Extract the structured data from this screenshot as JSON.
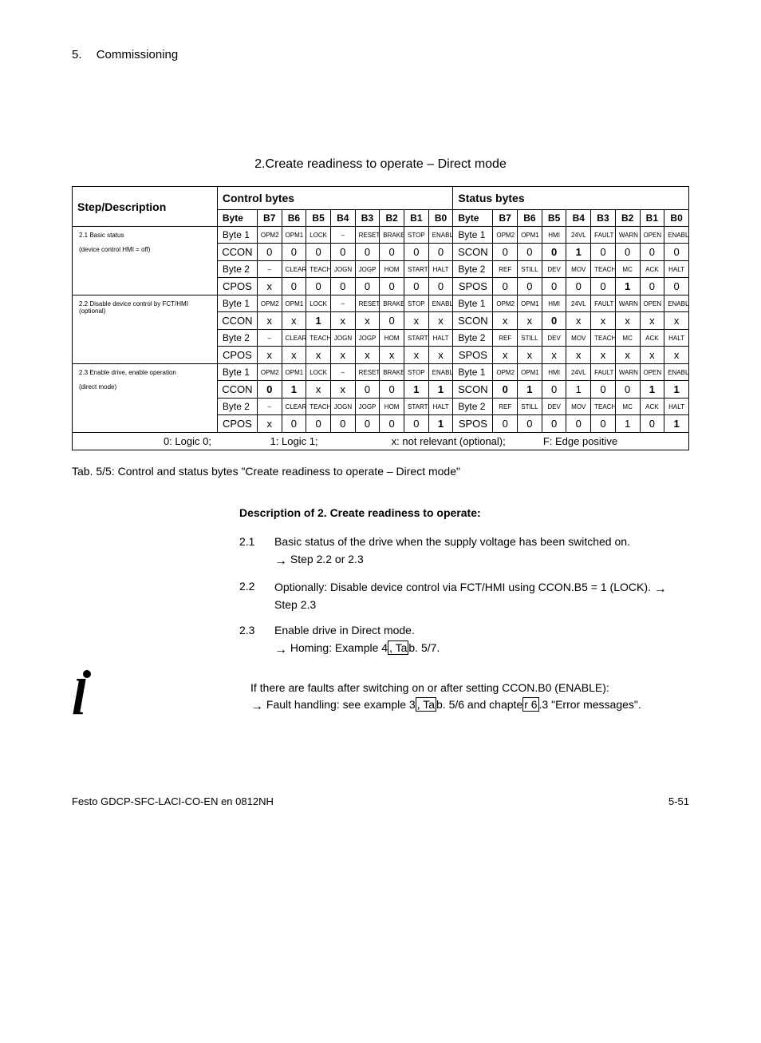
{
  "chapter": {
    "num": "5.",
    "title": "Commissioning"
  },
  "section_title": "2.Create readiness to operate – Direct mode",
  "header": {
    "step": "Step/Description",
    "control": "Control bytes",
    "status": "Status bytes",
    "byte": "Byte",
    "bits": [
      "B7",
      "B6",
      "B5",
      "B4",
      "B3",
      "B2",
      "B1",
      "B0"
    ]
  },
  "label_bits": {
    "byte1_c": [
      "OPM2",
      "OPM1",
      "LOCK",
      "–",
      "RESET",
      "BRAKE",
      "STOP",
      "ENABL"
    ],
    "byte1_s": [
      "OPM2",
      "OPM1",
      "HMI",
      "24VL",
      "FAULT",
      "WARN",
      "OPEN",
      "ENABL"
    ],
    "byte2_c": [
      "–",
      "CLEAR",
      "TEACH",
      "JOGN",
      "JOGP",
      "HOM",
      "START",
      "HALT"
    ],
    "byte2_s": [
      "REF",
      "STILL",
      "DEV",
      "MOV",
      "TEACH",
      "MC",
      "ACK",
      "HALT"
    ]
  },
  "rows": [
    {
      "desc": "2.1 Basic status\n\n(device control HMI = off)",
      "b1c_label": "Byte 1",
      "b1c_reg": "CCON",
      "b1c_vals": [
        "0",
        "0",
        "0",
        "0",
        "0",
        "0",
        "0",
        "0"
      ],
      "b1s_label": "Byte 1",
      "b1s_reg": "SCON",
      "b1s_vals": [
        "0",
        "0",
        "0",
        "1",
        "0",
        "0",
        "0",
        "0"
      ],
      "b1s_bold": [
        false,
        false,
        true,
        true,
        false,
        false,
        false,
        false
      ],
      "b2c_label": "Byte 2",
      "b2c_reg": "CPOS",
      "b2c_vals": [
        "x",
        "0",
        "0",
        "0",
        "0",
        "0",
        "0",
        "0"
      ],
      "b2s_label": "Byte 2",
      "b2s_reg": "SPOS",
      "b2s_vals": [
        "0",
        "0",
        "0",
        "0",
        "0",
        "1",
        "0",
        "0"
      ],
      "b2s_bold": [
        false,
        false,
        false,
        false,
        false,
        true,
        false,
        false
      ]
    },
    {
      "desc": "2.2 Disable device control by FCT/HMI (optional)",
      "b1c_label": "Byte 1",
      "b1c_reg": "CCON",
      "b1c_vals": [
        "x",
        "x",
        "1",
        "x",
        "x",
        "0",
        "x",
        "x"
      ],
      "b1c_bold": [
        false,
        false,
        true,
        false,
        false,
        false,
        false,
        false
      ],
      "b1s_label": "Byte 1",
      "b1s_reg": "SCON",
      "b1s_vals": [
        "x",
        "x",
        "0",
        "x",
        "x",
        "x",
        "x",
        "x"
      ],
      "b1s_bold": [
        false,
        false,
        true,
        false,
        false,
        false,
        false,
        false
      ],
      "b2c_label": "Byte 2",
      "b2c_reg": "CPOS",
      "b2c_vals": [
        "x",
        "x",
        "x",
        "x",
        "x",
        "x",
        "x",
        "x"
      ],
      "b2s_label": "Byte 2",
      "b2s_reg": "SPOS",
      "b2s_vals": [
        "x",
        "x",
        "x",
        "x",
        "x",
        "x",
        "x",
        "x"
      ]
    },
    {
      "desc": "2.3 Enable drive, enable operation\n\n(direct mode)",
      "b1c_label": "Byte 1",
      "b1c_reg": "CCON",
      "b1c_vals": [
        "0",
        "1",
        "x",
        "x",
        "0",
        "0",
        "1",
        "1"
      ],
      "b1c_bold": [
        true,
        true,
        false,
        false,
        false,
        false,
        true,
        true
      ],
      "b1s_label": "Byte 1",
      "b1s_reg": "SCON",
      "b1s_vals": [
        "0",
        "1",
        "0",
        "1",
        "0",
        "0",
        "1",
        "1"
      ],
      "b1s_bold": [
        true,
        true,
        false,
        false,
        false,
        false,
        true,
        true
      ],
      "b2c_label": "Byte 2",
      "b2c_reg": "CPOS",
      "b2c_vals": [
        "x",
        "0",
        "0",
        "0",
        "0",
        "0",
        "0",
        "1"
      ],
      "b2c_bold": [
        false,
        false,
        false,
        false,
        false,
        false,
        false,
        true
      ],
      "b2s_label": "Byte 2",
      "b2s_reg": "SPOS",
      "b2s_vals": [
        "0",
        "0",
        "0",
        "0",
        "0",
        "1",
        "0",
        "1"
      ],
      "b2s_bold": [
        false,
        false,
        false,
        false,
        false,
        false,
        false,
        true
      ]
    }
  ],
  "legend": {
    "a": "0: Logic 0;",
    "b": "1: Logic 1;",
    "c": "x: not relevant (optional);",
    "d": "F: Edge positive"
  },
  "caption": "Tab. 5/5:   Control and status bytes \"Create readiness to operate – Direct mode\"",
  "description": {
    "heading": "Description of 2. Create readiness to operate:",
    "items": [
      {
        "num": "2.1",
        "text_a": "Basic status of the drive when the supply voltage has been switched on.",
        "text_b": "Step 2.2 or 2.3"
      },
      {
        "num": "2.2",
        "text_a": "Optionally: Disable device control via FCT/HMI using CCON.B5 = 1 (LOCK).  ",
        "text_b_inline": "Step 2.3"
      },
      {
        "num": "2.3",
        "text_a": "Enable drive in Direct mode.",
        "text_b": "Homing: Example 4",
        "tab_ref": ", Ta",
        "after": "b. 5/7."
      }
    ]
  },
  "info": {
    "line1": "If there are faults after switching on or after setting CCON.B0 (ENABLE):",
    "line2a": "Fault handling: see example 3",
    "ref1": ", Ta",
    "line2b": "b. 5/6 and chapte",
    "ref2": "r 6",
    "line2c": ".3 \"Error messages\"."
  },
  "footer": {
    "left": "Festo  GDCP-SFC-LACI-CO-EN  en 0812NH",
    "right": "5-51"
  }
}
